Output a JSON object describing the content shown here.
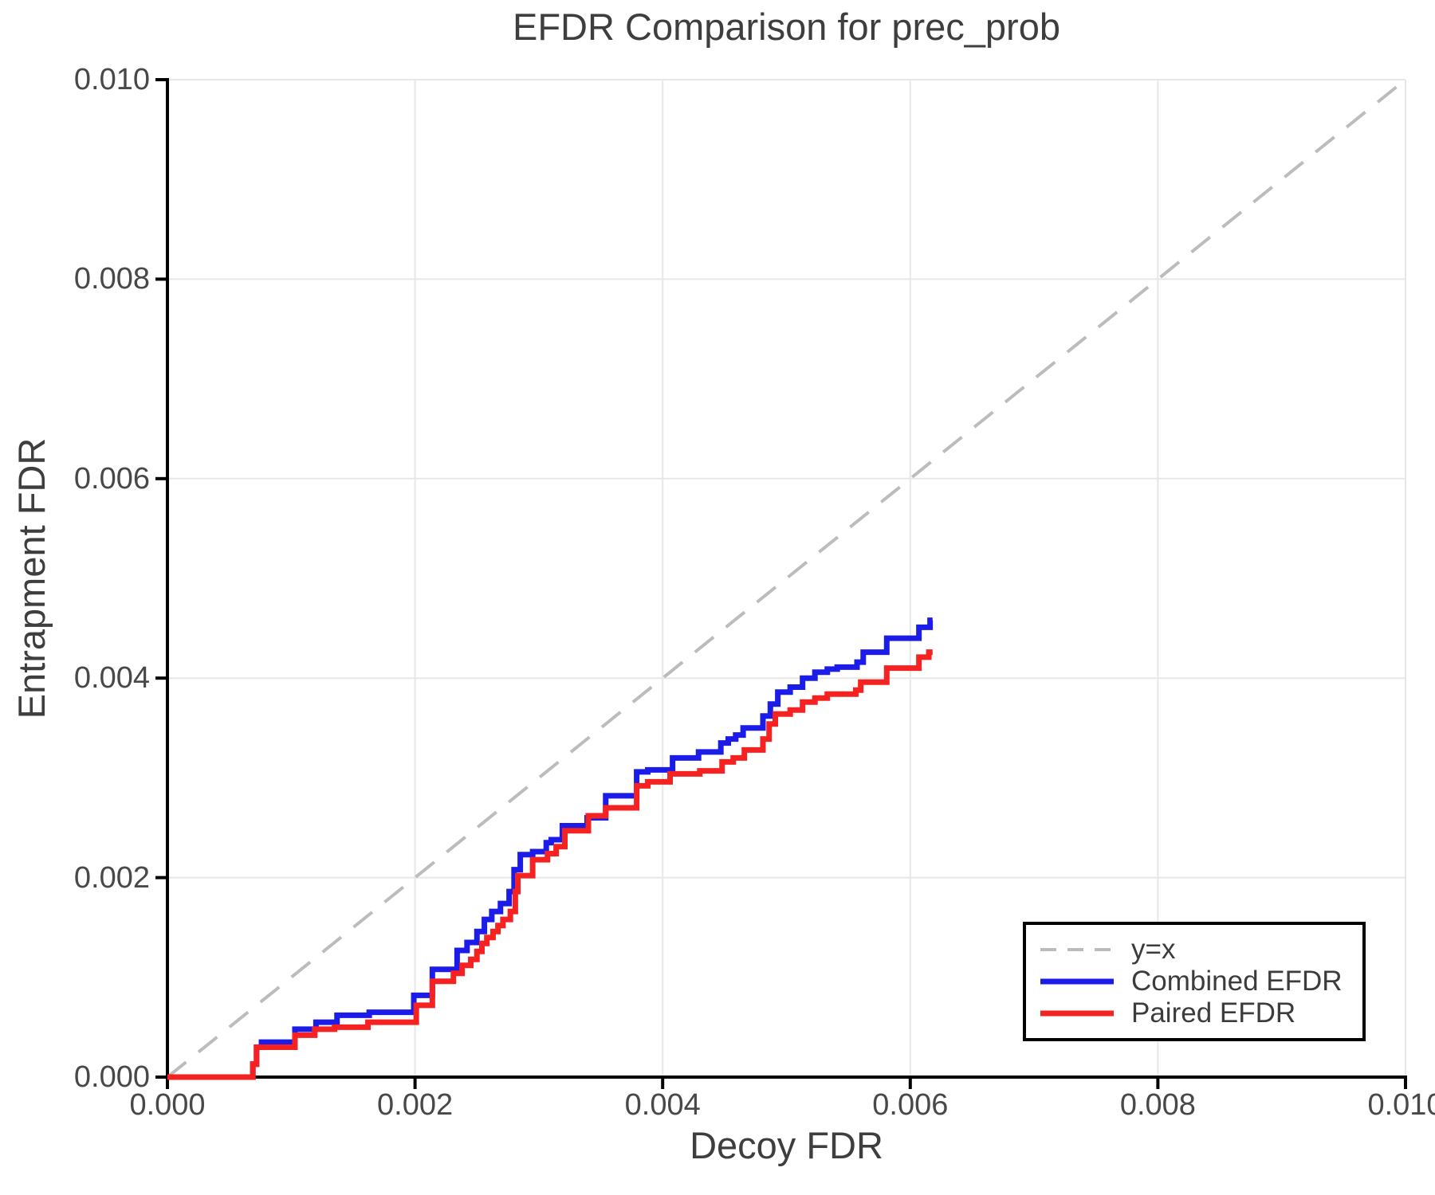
{
  "chart_data": {
    "type": "line",
    "title": "EFDR Comparison for prec_prob",
    "xlabel": "Decoy FDR",
    "ylabel": "Entrapment FDR",
    "xlim": [
      0.0,
      0.01
    ],
    "ylim": [
      0.0,
      0.01
    ],
    "grid": true,
    "legend_position": "lower right",
    "xticks": {
      "values": [
        0.0,
        0.002,
        0.004,
        0.006,
        0.008,
        0.01
      ],
      "labels": [
        "0.000",
        "0.002",
        "0.004",
        "0.006",
        "0.008",
        "0.010"
      ]
    },
    "yticks": {
      "values": [
        0.0,
        0.002,
        0.004,
        0.006,
        0.008,
        0.01
      ],
      "labels": [
        "0.000",
        "0.002",
        "0.004",
        "0.006",
        "0.008",
        "0.010"
      ]
    },
    "series": [
      {
        "name": "y=x",
        "kind": "reference-diagonal",
        "style": "dashed",
        "color": "#bcbcbc",
        "points": [
          [
            0.0,
            0.0
          ],
          [
            0.01,
            0.01
          ]
        ]
      },
      {
        "name": "Combined EFDR",
        "kind": "step",
        "style": "solid",
        "color": "#1c1ce8",
        "x_end": 0.00618,
        "points": [
          [
            0.0,
            0.0
          ],
          [
            0.00069,
            0.00013
          ],
          [
            0.00072,
            0.0003
          ],
          [
            0.00076,
            0.00035
          ],
          [
            0.00103,
            0.00048
          ],
          [
            0.0012,
            0.00055
          ],
          [
            0.00137,
            0.00062
          ],
          [
            0.00163,
            0.00065
          ],
          [
            0.00199,
            0.00082
          ],
          [
            0.00214,
            0.00108
          ],
          [
            0.00234,
            0.00127
          ],
          [
            0.00242,
            0.00135
          ],
          [
            0.0025,
            0.00146
          ],
          [
            0.00256,
            0.00158
          ],
          [
            0.00262,
            0.00166
          ],
          [
            0.00269,
            0.00174
          ],
          [
            0.00276,
            0.00186
          ],
          [
            0.0028,
            0.00208
          ],
          [
            0.00285,
            0.00223
          ],
          [
            0.00295,
            0.00226
          ],
          [
            0.00306,
            0.00235
          ],
          [
            0.0031,
            0.00238
          ],
          [
            0.00319,
            0.00252
          ],
          [
            0.00339,
            0.0026
          ],
          [
            0.00354,
            0.00282
          ],
          [
            0.00379,
            0.00306
          ],
          [
            0.00388,
            0.00308
          ],
          [
            0.00408,
            0.0032
          ],
          [
            0.00429,
            0.00326
          ],
          [
            0.00447,
            0.00335
          ],
          [
            0.00453,
            0.00339
          ],
          [
            0.00459,
            0.00343
          ],
          [
            0.00465,
            0.0035
          ],
          [
            0.00481,
            0.00362
          ],
          [
            0.00487,
            0.00374
          ],
          [
            0.00493,
            0.00386
          ],
          [
            0.00503,
            0.00391
          ],
          [
            0.00513,
            0.004
          ],
          [
            0.00523,
            0.00406
          ],
          [
            0.00533,
            0.00409
          ],
          [
            0.00541,
            0.00411
          ],
          [
            0.00557,
            0.00416
          ],
          [
            0.00562,
            0.00426
          ],
          [
            0.00581,
            0.0044
          ],
          [
            0.00607,
            0.00451
          ],
          [
            0.00616,
            0.00458
          ]
        ]
      },
      {
        "name": "Paired EFDR",
        "kind": "step",
        "style": "solid",
        "color": "#f62222",
        "x_end": 0.00618,
        "points": [
          [
            0.0,
            0.0
          ],
          [
            0.00069,
            0.00013
          ],
          [
            0.00072,
            0.0003
          ],
          [
            0.00103,
            0.00042
          ],
          [
            0.00119,
            0.00048
          ],
          [
            0.00135,
            0.0005
          ],
          [
            0.00162,
            0.00055
          ],
          [
            0.00201,
            0.00072
          ],
          [
            0.00214,
            0.00096
          ],
          [
            0.00231,
            0.00104
          ],
          [
            0.00238,
            0.00112
          ],
          [
            0.00245,
            0.00118
          ],
          [
            0.0025,
            0.00126
          ],
          [
            0.00254,
            0.00134
          ],
          [
            0.00258,
            0.0014
          ],
          [
            0.00263,
            0.00146
          ],
          [
            0.00267,
            0.00152
          ],
          [
            0.00271,
            0.00158
          ],
          [
            0.00277,
            0.00166
          ],
          [
            0.00281,
            0.00186
          ],
          [
            0.00283,
            0.00202
          ],
          [
            0.00295,
            0.00218
          ],
          [
            0.00307,
            0.00224
          ],
          [
            0.00314,
            0.00231
          ],
          [
            0.00321,
            0.00247
          ],
          [
            0.0034,
            0.00262
          ],
          [
            0.00354,
            0.0027
          ],
          [
            0.00379,
            0.00292
          ],
          [
            0.00388,
            0.00296
          ],
          [
            0.00406,
            0.00304
          ],
          [
            0.0043,
            0.00307
          ],
          [
            0.00448,
            0.00316
          ],
          [
            0.00457,
            0.0032
          ],
          [
            0.00466,
            0.00328
          ],
          [
            0.00481,
            0.00339
          ],
          [
            0.00486,
            0.00354
          ],
          [
            0.00491,
            0.00364
          ],
          [
            0.00503,
            0.00368
          ],
          [
            0.00513,
            0.00376
          ],
          [
            0.00523,
            0.0038
          ],
          [
            0.00533,
            0.00384
          ],
          [
            0.00556,
            0.00388
          ],
          [
            0.0056,
            0.00396
          ],
          [
            0.00581,
            0.0041
          ],
          [
            0.00607,
            0.00421
          ],
          [
            0.00615,
            0.00426
          ]
        ]
      }
    ],
    "style": {
      "grid_color": "#e7e7e7",
      "spine_color": "#000000",
      "text_color": "#3e3e3e",
      "tick_label_color": "#484848",
      "background": "#ffffff"
    }
  }
}
